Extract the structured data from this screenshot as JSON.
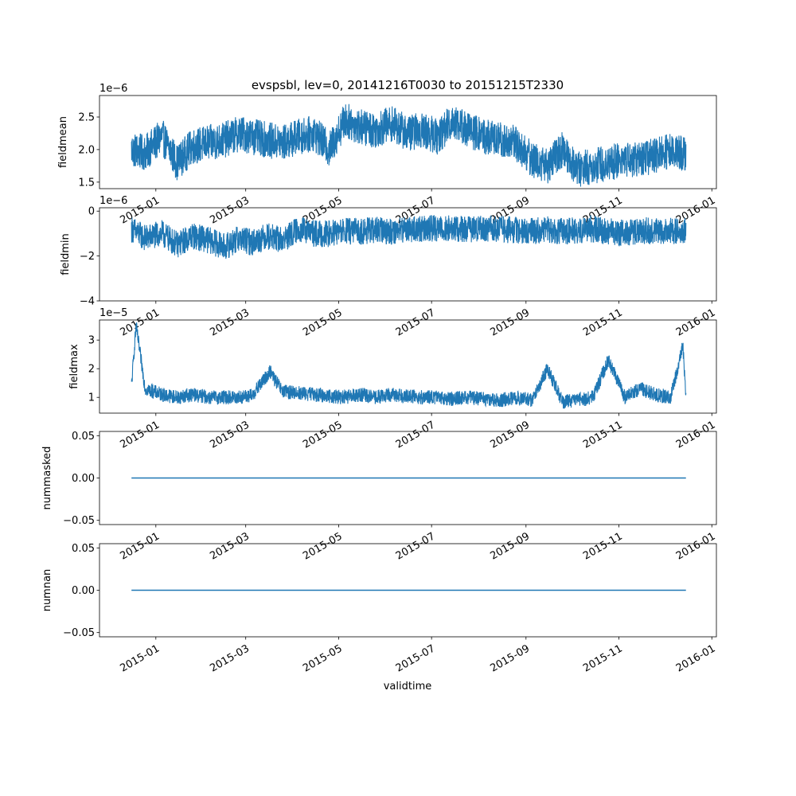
{
  "figure": {
    "title": "evspsbl, lev=0, 20141216T0030 to 20151215T2330",
    "xlabel": "validtime"
  },
  "chart_data": [
    {
      "type": "line",
      "ylabel": "fieldmean",
      "offset_text": "1e−6",
      "ylim": [
        1.4,
        2.83
      ],
      "yticks": [
        1.5,
        2.0,
        2.5
      ],
      "ytick_labels": [
        "1.5",
        "2.0",
        "2.5"
      ],
      "color": "#1f77b4",
      "baseline": 2.05,
      "amplitude": 0.28,
      "series": [
        {
          "x": [
            "2014-12-16",
            "2014-12-25",
            "2015-01-05",
            "2015-01-15",
            "2015-01-25",
            "2015-02-05",
            "2015-02-15",
            "2015-02-25",
            "2015-03-05",
            "2015-03-15",
            "2015-03-25",
            "2015-04-05",
            "2015-04-15",
            "2015-04-25",
            "2015-05-05",
            "2015-05-15",
            "2015-05-25",
            "2015-06-05",
            "2015-06-15",
            "2015-06-25",
            "2015-07-05",
            "2015-07-15",
            "2015-07-25",
            "2015-08-05",
            "2015-08-15",
            "2015-08-25",
            "2015-09-05",
            "2015-09-15",
            "2015-09-25",
            "2015-10-05",
            "2015-10-15",
            "2015-10-25",
            "2015-11-05",
            "2015-11-15",
            "2015-11-25",
            "2015-12-05",
            "2015-12-15"
          ],
          "y": [
            2.0,
            1.95,
            2.2,
            1.8,
            2.05,
            2.1,
            2.15,
            2.25,
            2.2,
            2.15,
            2.1,
            2.2,
            2.25,
            2.0,
            2.45,
            2.35,
            2.3,
            2.4,
            2.25,
            2.3,
            2.2,
            2.45,
            2.3,
            2.2,
            2.15,
            2.1,
            1.85,
            1.75,
            2.0,
            1.7,
            1.75,
            1.8,
            1.85,
            1.85,
            1.9,
            2.0,
            1.95
          ]
        }
      ]
    },
    {
      "type": "line",
      "ylabel": "fieldmin",
      "offset_text": "1e−6",
      "ylim": [
        -4.0,
        0.15
      ],
      "yticks": [
        -4,
        -2,
        0
      ],
      "ytick_labels": [
        "−4",
        "−2",
        "0"
      ],
      "color": "#1f77b4",
      "baseline": -0.9,
      "amplitude": 0.6,
      "series": [
        {
          "x": [
            "2014-12-16",
            "2014-12-25",
            "2015-01-05",
            "2015-01-15",
            "2015-01-25",
            "2015-02-05",
            "2015-02-15",
            "2015-02-25",
            "2015-03-05",
            "2015-03-15",
            "2015-03-25",
            "2015-04-05",
            "2015-04-15",
            "2015-04-25",
            "2015-05-05",
            "2015-05-15",
            "2015-05-25",
            "2015-06-05",
            "2015-06-15",
            "2015-06-25",
            "2015-07-05",
            "2015-07-15",
            "2015-07-25",
            "2015-08-05",
            "2015-08-15",
            "2015-08-25",
            "2015-09-05",
            "2015-09-15",
            "2015-09-25",
            "2015-10-05",
            "2015-10-15",
            "2015-10-25",
            "2015-11-05",
            "2015-11-15",
            "2015-11-25",
            "2015-12-05",
            "2015-12-15"
          ],
          "y": [
            -0.8,
            -1.2,
            -1.0,
            -1.5,
            -1.1,
            -1.3,
            -1.6,
            -1.2,
            -1.4,
            -1.1,
            -1.3,
            -0.8,
            -1.0,
            -1.0,
            -0.9,
            -0.9,
            -0.85,
            -0.9,
            -0.8,
            -0.8,
            -0.75,
            -0.8,
            -0.8,
            -0.75,
            -0.8,
            -0.85,
            -0.9,
            -0.8,
            -0.9,
            -0.85,
            -0.8,
            -0.9,
            -1.0,
            -0.85,
            -0.9,
            -0.9,
            -0.85
          ]
        }
      ]
    },
    {
      "type": "line",
      "ylabel": "fieldmax",
      "offset_text": "1e−5",
      "ylim": [
        0.45,
        3.7
      ],
      "yticks": [
        1,
        2,
        3
      ],
      "ytick_labels": [
        "1",
        "2",
        "3"
      ],
      "color": "#1f77b4",
      "baseline": 1.0,
      "amplitude": 0.25,
      "series": [
        {
          "x": [
            "2014-12-16",
            "2014-12-19",
            "2014-12-25",
            "2015-01-05",
            "2015-01-15",
            "2015-01-25",
            "2015-02-05",
            "2015-02-15",
            "2015-02-25",
            "2015-03-05",
            "2015-03-17",
            "2015-03-25",
            "2015-04-05",
            "2015-04-15",
            "2015-04-25",
            "2015-05-05",
            "2015-05-15",
            "2015-05-25",
            "2015-06-05",
            "2015-06-15",
            "2015-06-25",
            "2015-07-05",
            "2015-07-15",
            "2015-07-25",
            "2015-08-05",
            "2015-08-15",
            "2015-08-25",
            "2015-09-05",
            "2015-09-15",
            "2015-09-25",
            "2015-10-05",
            "2015-10-15",
            "2015-10-25",
            "2015-11-05",
            "2015-11-15",
            "2015-11-25",
            "2015-12-05",
            "2015-12-13",
            "2015-12-15"
          ],
          "y": [
            1.4,
            3.5,
            1.3,
            1.1,
            1.0,
            1.1,
            1.0,
            1.0,
            1.0,
            1.05,
            1.9,
            1.2,
            1.15,
            1.1,
            1.05,
            1.0,
            1.1,
            1.0,
            1.1,
            1.05,
            1.0,
            1.0,
            0.95,
            1.0,
            0.95,
            0.9,
            1.0,
            0.9,
            2.0,
            0.85,
            0.9,
            1.0,
            2.3,
            1.0,
            1.3,
            1.1,
            1.0,
            2.8,
            1.0
          ]
        }
      ]
    },
    {
      "type": "line",
      "ylabel": "nummasked",
      "ylim": [
        -0.055,
        0.055
      ],
      "yticks": [
        -0.05,
        0.0,
        0.05
      ],
      "ytick_labels": [
        "−0.05",
        "0.00",
        "0.05"
      ],
      "color": "#1f77b4",
      "series": [
        {
          "x": [
            "2014-12-16",
            "2015-12-15"
          ],
          "y": [
            0,
            0
          ]
        }
      ]
    },
    {
      "type": "line",
      "ylabel": "numnan",
      "ylim": [
        -0.055,
        0.055
      ],
      "yticks": [
        -0.05,
        0.0,
        0.05
      ],
      "ytick_labels": [
        "−0.05",
        "0.00",
        "0.05"
      ],
      "color": "#1f77b4",
      "series": [
        {
          "x": [
            "2014-12-16",
            "2015-12-15"
          ],
          "y": [
            0,
            0
          ]
        }
      ]
    }
  ],
  "xaxis": {
    "xlim": [
      "2014-11-25",
      "2016-01-04"
    ],
    "ticks": [
      "2015-01-01",
      "2015-03-01",
      "2015-05-01",
      "2015-07-01",
      "2015-09-01",
      "2015-11-01",
      "2016-01-01"
    ],
    "tick_labels": [
      "2015-01",
      "2015-03",
      "2015-05",
      "2015-07",
      "2015-09",
      "2015-11",
      "2016-01"
    ]
  }
}
